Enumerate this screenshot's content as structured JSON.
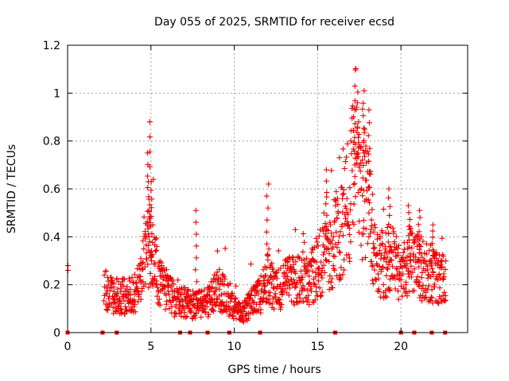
{
  "chart_data": {
    "type": "scatter",
    "title": "Day 055 of 2025, SRMTID for receiver ecsd",
    "xlabel": "GPS time / hours",
    "ylabel": "SRMTID / TECUs",
    "xlim": [
      0,
      24
    ],
    "ylim": [
      0,
      1.2
    ],
    "xticks": [
      0,
      5,
      10,
      15,
      20
    ],
    "xtick_labels": [
      "0",
      "5",
      "10",
      "15",
      "20"
    ],
    "yticks": [
      0,
      0.2,
      0.4,
      0.6,
      0.8,
      1.0,
      1.2
    ],
    "ytick_labels": [
      "0",
      "0.2",
      "0.4",
      "0.6",
      "0.8",
      "1",
      "1.2"
    ],
    "grid": true,
    "marker": "plus",
    "color": "#ee0000",
    "trend_hours": [
      0,
      2.2,
      3,
      4,
      4.5,
      4.9,
      5.5,
      6,
      6.5,
      7,
      7.5,
      8,
      8.5,
      9,
      9.5,
      10,
      10.5,
      11,
      11.5,
      12,
      12.5,
      13,
      13.5,
      14,
      14.5,
      15,
      15.5,
      16,
      16.5,
      17,
      17.3,
      17.6,
      18,
      18.5,
      19,
      19.5,
      20,
      20.5,
      21,
      21.5,
      22,
      22.7
    ],
    "trend_values": [
      0.27,
      0.18,
      0.15,
      0.16,
      0.25,
      0.38,
      0.22,
      0.18,
      0.12,
      0.13,
      0.11,
      0.12,
      0.13,
      0.18,
      0.16,
      0.1,
      0.08,
      0.12,
      0.15,
      0.22,
      0.18,
      0.2,
      0.24,
      0.2,
      0.22,
      0.28,
      0.3,
      0.38,
      0.45,
      0.6,
      0.75,
      0.62,
      0.55,
      0.3,
      0.28,
      0.32,
      0.22,
      0.3,
      0.28,
      0.25,
      0.24,
      0.22
    ],
    "spikes": [
      {
        "hour": 4.9,
        "value": 0.88
      },
      {
        "hour": 4.85,
        "value": 0.75
      },
      {
        "hour": 5.05,
        "value": 0.63
      },
      {
        "hour": 7.7,
        "value": 0.51
      },
      {
        "hour": 12.0,
        "value": 0.62
      },
      {
        "hour": 15.5,
        "value": 0.68
      },
      {
        "hour": 17.2,
        "value": 0.93
      },
      {
        "hour": 17.4,
        "value": 0.88
      },
      {
        "hour": 17.75,
        "value": 1.01
      },
      {
        "hour": 18.1,
        "value": 0.93
      },
      {
        "hour": 19.3,
        "value": 0.6
      },
      {
        "hour": 20.5,
        "value": 0.53
      },
      {
        "hour": 21.1,
        "value": 0.51
      },
      {
        "hour": 21.9,
        "value": 0.45
      }
    ],
    "data_gap_marks_hours": [
      0,
      2.1,
      2.95,
      6.75,
      7.35,
      8.4,
      9.7,
      11.55,
      16.05,
      20.0,
      20.8,
      21.85,
      22.65
    ]
  }
}
